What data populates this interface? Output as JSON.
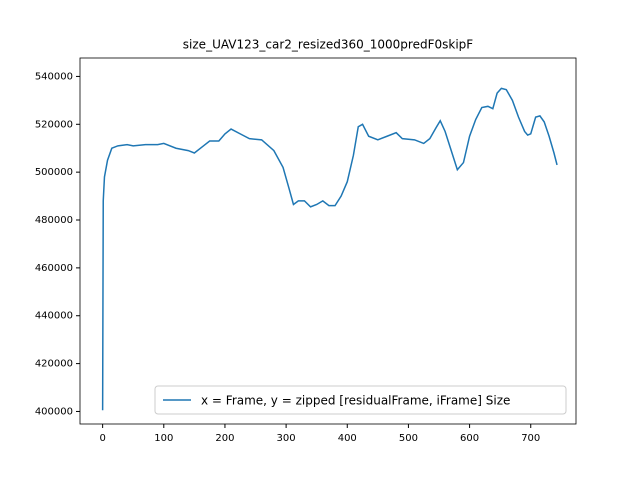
{
  "chart_data": {
    "type": "line",
    "title": "size_UAV123_car2_resized360_1000predF0skipF",
    "x": [
      0,
      1,
      3,
      8,
      15,
      25,
      40,
      50,
      70,
      90,
      100,
      120,
      140,
      150,
      165,
      175,
      190,
      200,
      210,
      225,
      240,
      260,
      280,
      295,
      305,
      312,
      320,
      330,
      340,
      350,
      360,
      370,
      380,
      390,
      400,
      410,
      418,
      425,
      435,
      450,
      465,
      480,
      490,
      510,
      525,
      535,
      545,
      552,
      560,
      570,
      580,
      590,
      600,
      610,
      620,
      630,
      638,
      645,
      652,
      660,
      670,
      680,
      690,
      695,
      700,
      708,
      715,
      722,
      730,
      738,
      743
    ],
    "series": [
      {
        "name": "x = Frame, y =  zipped [residualFrame, iFrame] Size",
        "color": "#1f77b4",
        "values": [
          400500,
          488000,
          498000,
          505000,
          510000,
          511000,
          511500,
          511000,
          511500,
          511500,
          512000,
          510000,
          509000,
          508000,
          511000,
          513000,
          513000,
          516000,
          518000,
          516000,
          514000,
          513500,
          509000,
          502000,
          493000,
          486500,
          488000,
          488000,
          485500,
          486500,
          488000,
          486000,
          486000,
          490000,
          496000,
          507000,
          519000,
          520000,
          515000,
          513500,
          515000,
          516500,
          514000,
          513500,
          512000,
          514000,
          518500,
          521500,
          517000,
          509000,
          501000,
          504000,
          515000,
          522000,
          527000,
          527500,
          526500,
          533000,
          535000,
          534500,
          530000,
          523000,
          517000,
          515500,
          516000,
          523000,
          523500,
          521000,
          515000,
          508000,
          503000
        ]
      }
    ],
    "xlim": [
      -37,
      774
    ],
    "xticks": [
      0,
      100,
      200,
      300,
      400,
      500,
      600,
      700
    ],
    "ylim": [
      394760,
      547700
    ],
    "yticks": [
      400000,
      420000,
      440000,
      460000,
      480000,
      500000,
      520000,
      540000
    ],
    "legend": "lower right"
  }
}
